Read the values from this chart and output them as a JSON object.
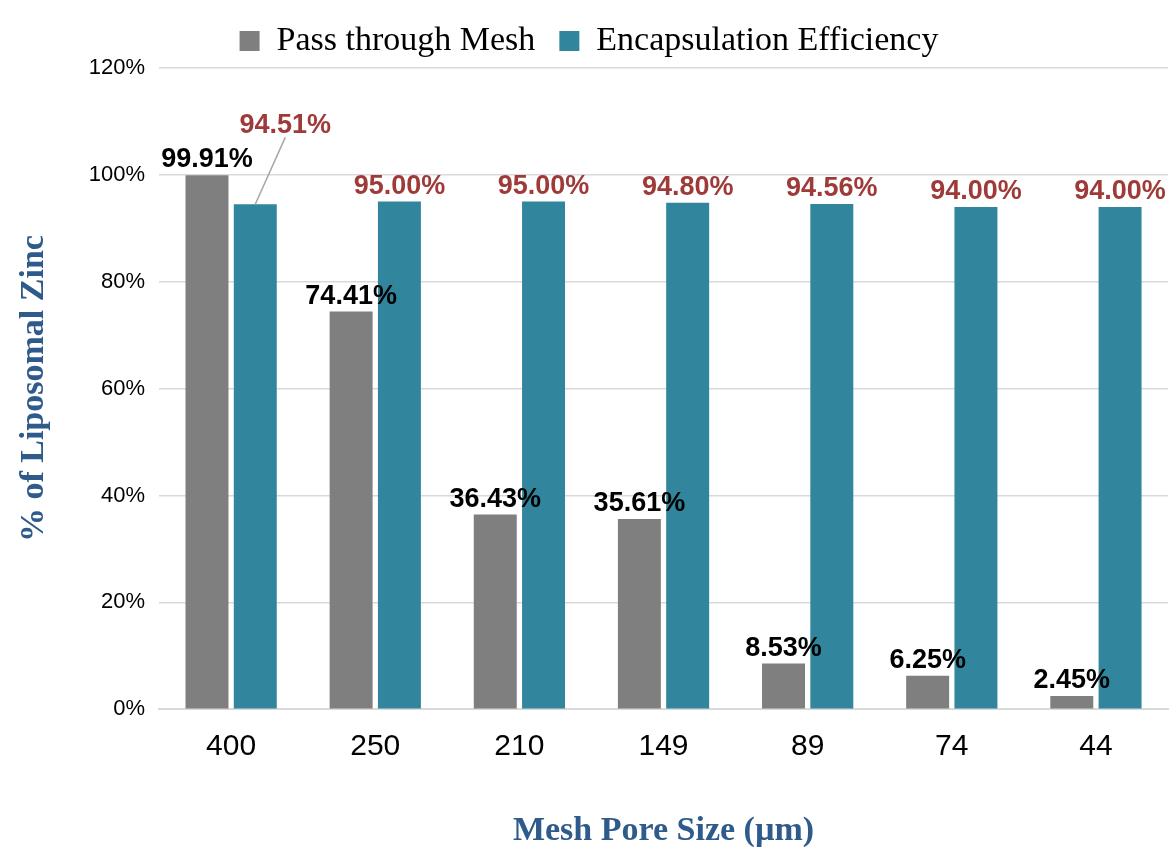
{
  "chart_data": {
    "type": "bar",
    "xlabel": "Mesh Pore Size (µm)",
    "ylabel": "% of Liposomal Zinc",
    "categories": [
      "400",
      "250",
      "210",
      "149",
      "89",
      "74",
      "44"
    ],
    "series": [
      {
        "name": "Pass through Mesh",
        "color": "#7f7f7f",
        "values": [
          99.91,
          74.41,
          36.43,
          35.61,
          8.53,
          6.25,
          2.45
        ],
        "value_labels": [
          "99.91%",
          "74.41%",
          "36.43%",
          "35.61%",
          "8.53%",
          "6.25%",
          "2.45%"
        ]
      },
      {
        "name": "Encapsulation Efficiency",
        "color": "#31859c",
        "values": [
          94.51,
          95.0,
          95.0,
          94.8,
          94.56,
          94.0,
          94.0
        ],
        "value_labels": [
          "94.51%",
          "95.00%",
          "95.00%",
          "94.80%",
          "94.56%",
          "94.00%",
          "94.00%"
        ]
      }
    ],
    "ylim": [
      0,
      120
    ],
    "yticks": [
      {
        "value": 0,
        "label": "0%"
      },
      {
        "value": 20,
        "label": "20%"
      },
      {
        "value": 40,
        "label": "40%"
      },
      {
        "value": 60,
        "label": "60%"
      },
      {
        "value": 80,
        "label": "80%"
      },
      {
        "value": 100,
        "label": "100%"
      },
      {
        "value": 120,
        "label": "120%"
      }
    ],
    "grid": "y",
    "legend": "top"
  }
}
